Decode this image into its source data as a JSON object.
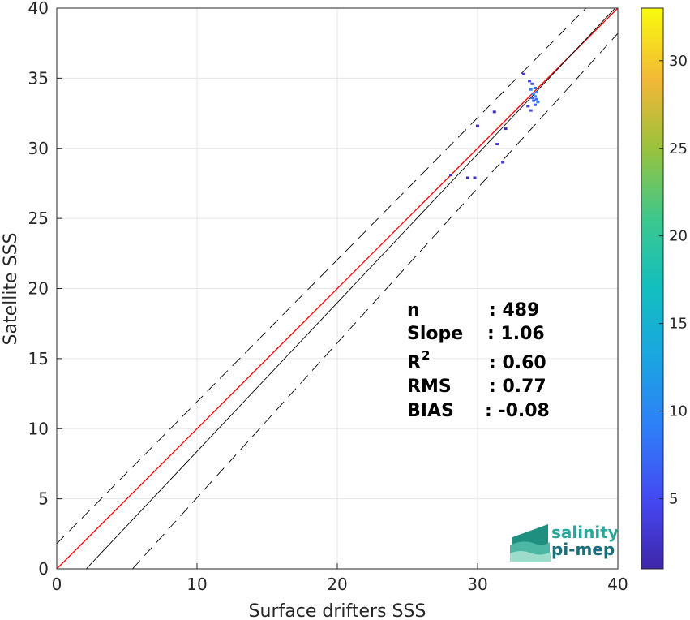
{
  "chart_data": {
    "type": "scatter",
    "xlabel": "Surface drifters SSS",
    "ylabel": "Satellite SSS",
    "xlim": [
      0,
      40
    ],
    "ylim": [
      0,
      40
    ],
    "xticks": [
      "0",
      "10",
      "20",
      "30",
      "40"
    ],
    "yticks": [
      "0",
      "5",
      "10",
      "15",
      "20",
      "25",
      "30",
      "35",
      "40"
    ],
    "grid": true,
    "colorbar": {
      "ticks": [
        "5",
        "10",
        "15",
        "20",
        "25",
        "30"
      ],
      "range": [
        1,
        33
      ],
      "colormap": "parula"
    },
    "points": [
      {
        "x": 33.3,
        "y": 35.3,
        "c": 3
      },
      {
        "x": 33.7,
        "y": 34.8,
        "c": 5
      },
      {
        "x": 33.9,
        "y": 34.6,
        "c": 6
      },
      {
        "x": 34.1,
        "y": 34.3,
        "c": 8
      },
      {
        "x": 33.8,
        "y": 34.2,
        "c": 9
      },
      {
        "x": 34.2,
        "y": 34.0,
        "c": 10
      },
      {
        "x": 34.0,
        "y": 33.9,
        "c": 11
      },
      {
        "x": 34.1,
        "y": 33.7,
        "c": 9
      },
      {
        "x": 33.9,
        "y": 33.6,
        "c": 7
      },
      {
        "x": 34.2,
        "y": 33.5,
        "c": 8
      },
      {
        "x": 34.0,
        "y": 33.4,
        "c": 6
      },
      {
        "x": 34.3,
        "y": 33.3,
        "c": 9
      },
      {
        "x": 34.1,
        "y": 33.1,
        "c": 6
      },
      {
        "x": 33.6,
        "y": 33.0,
        "c": 4
      },
      {
        "x": 33.8,
        "y": 32.7,
        "c": 5
      },
      {
        "x": 31.2,
        "y": 32.6,
        "c": 2
      },
      {
        "x": 30.0,
        "y": 31.6,
        "c": 2
      },
      {
        "x": 32.0,
        "y": 31.4,
        "c": 2
      },
      {
        "x": 31.4,
        "y": 30.3,
        "c": 3
      },
      {
        "x": 31.8,
        "y": 29.0,
        "c": 4
      },
      {
        "x": 28.1,
        "y": 28.1,
        "c": 2
      },
      {
        "x": 29.3,
        "y": 27.9,
        "c": 2
      },
      {
        "x": 29.8,
        "y": 27.9,
        "c": 2
      }
    ],
    "lines": [
      {
        "name": "",
        "color": "#ff0000",
        "points": [
          [
            0,
            0
          ],
          [
            40,
            40
          ]
        ]
      },
      {
        "name": "",
        "color": "#000000",
        "points": [
          [
            2.1,
            0
          ],
          [
            40,
            40.2
          ]
        ]
      },
      {
        "name": "",
        "color": "#000000",
        "dash": true,
        "points": [
          [
            0,
            1.8
          ],
          [
            40,
            42.3
          ]
        ]
      },
      {
        "name": "",
        "color": "#000000",
        "dash": true,
        "points": [
          [
            5.4,
            0
          ],
          [
            40,
            38.2
          ]
        ]
      }
    ]
  },
  "stats": {
    "n": {
      "label": "n",
      "value": ": 489"
    },
    "slope": {
      "label": "Slope",
      "value": ": 1.06"
    },
    "r2": {
      "label": "R",
      "sup": "2",
      "value": ": 0.60"
    },
    "rms": {
      "label": "RMS",
      "value": ": 0.77"
    },
    "bias": {
      "label": "BIAS",
      "value": ": -0.08"
    }
  },
  "logo": {
    "line1": "salinity",
    "line2": "pi-mep"
  }
}
